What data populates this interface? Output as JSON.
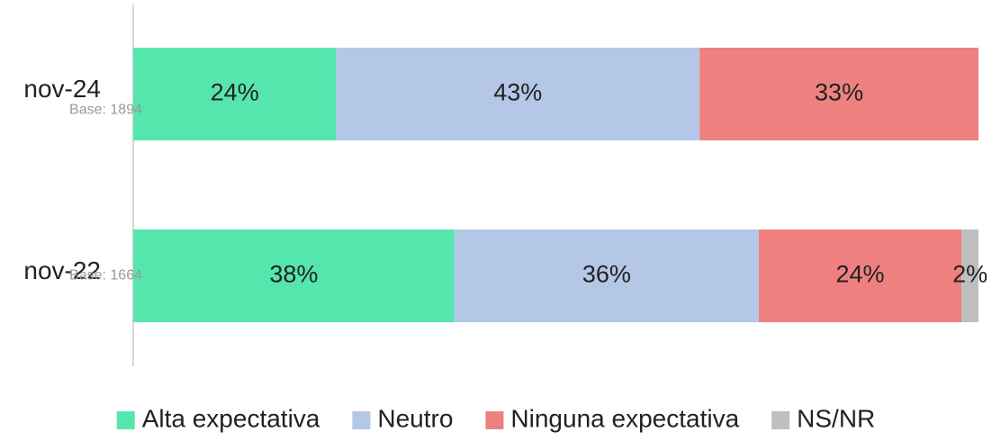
{
  "chart_data": {
    "type": "stacked-bar-horizontal",
    "categories": [
      "nov-24",
      "nov-22"
    ],
    "bases": [
      "Base: 1894",
      "Base: 1664"
    ],
    "series": [
      {
        "name": "Alta expectativa",
        "color": "#55e6ae",
        "values": [
          24,
          38
        ],
        "value_labels": [
          "24%",
          "38%"
        ]
      },
      {
        "name": "Neutro",
        "color": "#b4c7e7",
        "values": [
          43,
          36
        ],
        "value_labels": [
          "43%",
          "36%"
        ]
      },
      {
        "name": "Ninguna expectativa",
        "color": "#ee8080",
        "values": [
          33,
          24
        ],
        "value_labels": [
          "33%",
          "24%"
        ]
      },
      {
        "name": "NS/NR",
        "color": "#bfbfbf",
        "values": [
          null,
          2
        ],
        "value_labels": [
          null,
          "2%"
        ]
      }
    ],
    "legend": "bottom"
  }
}
